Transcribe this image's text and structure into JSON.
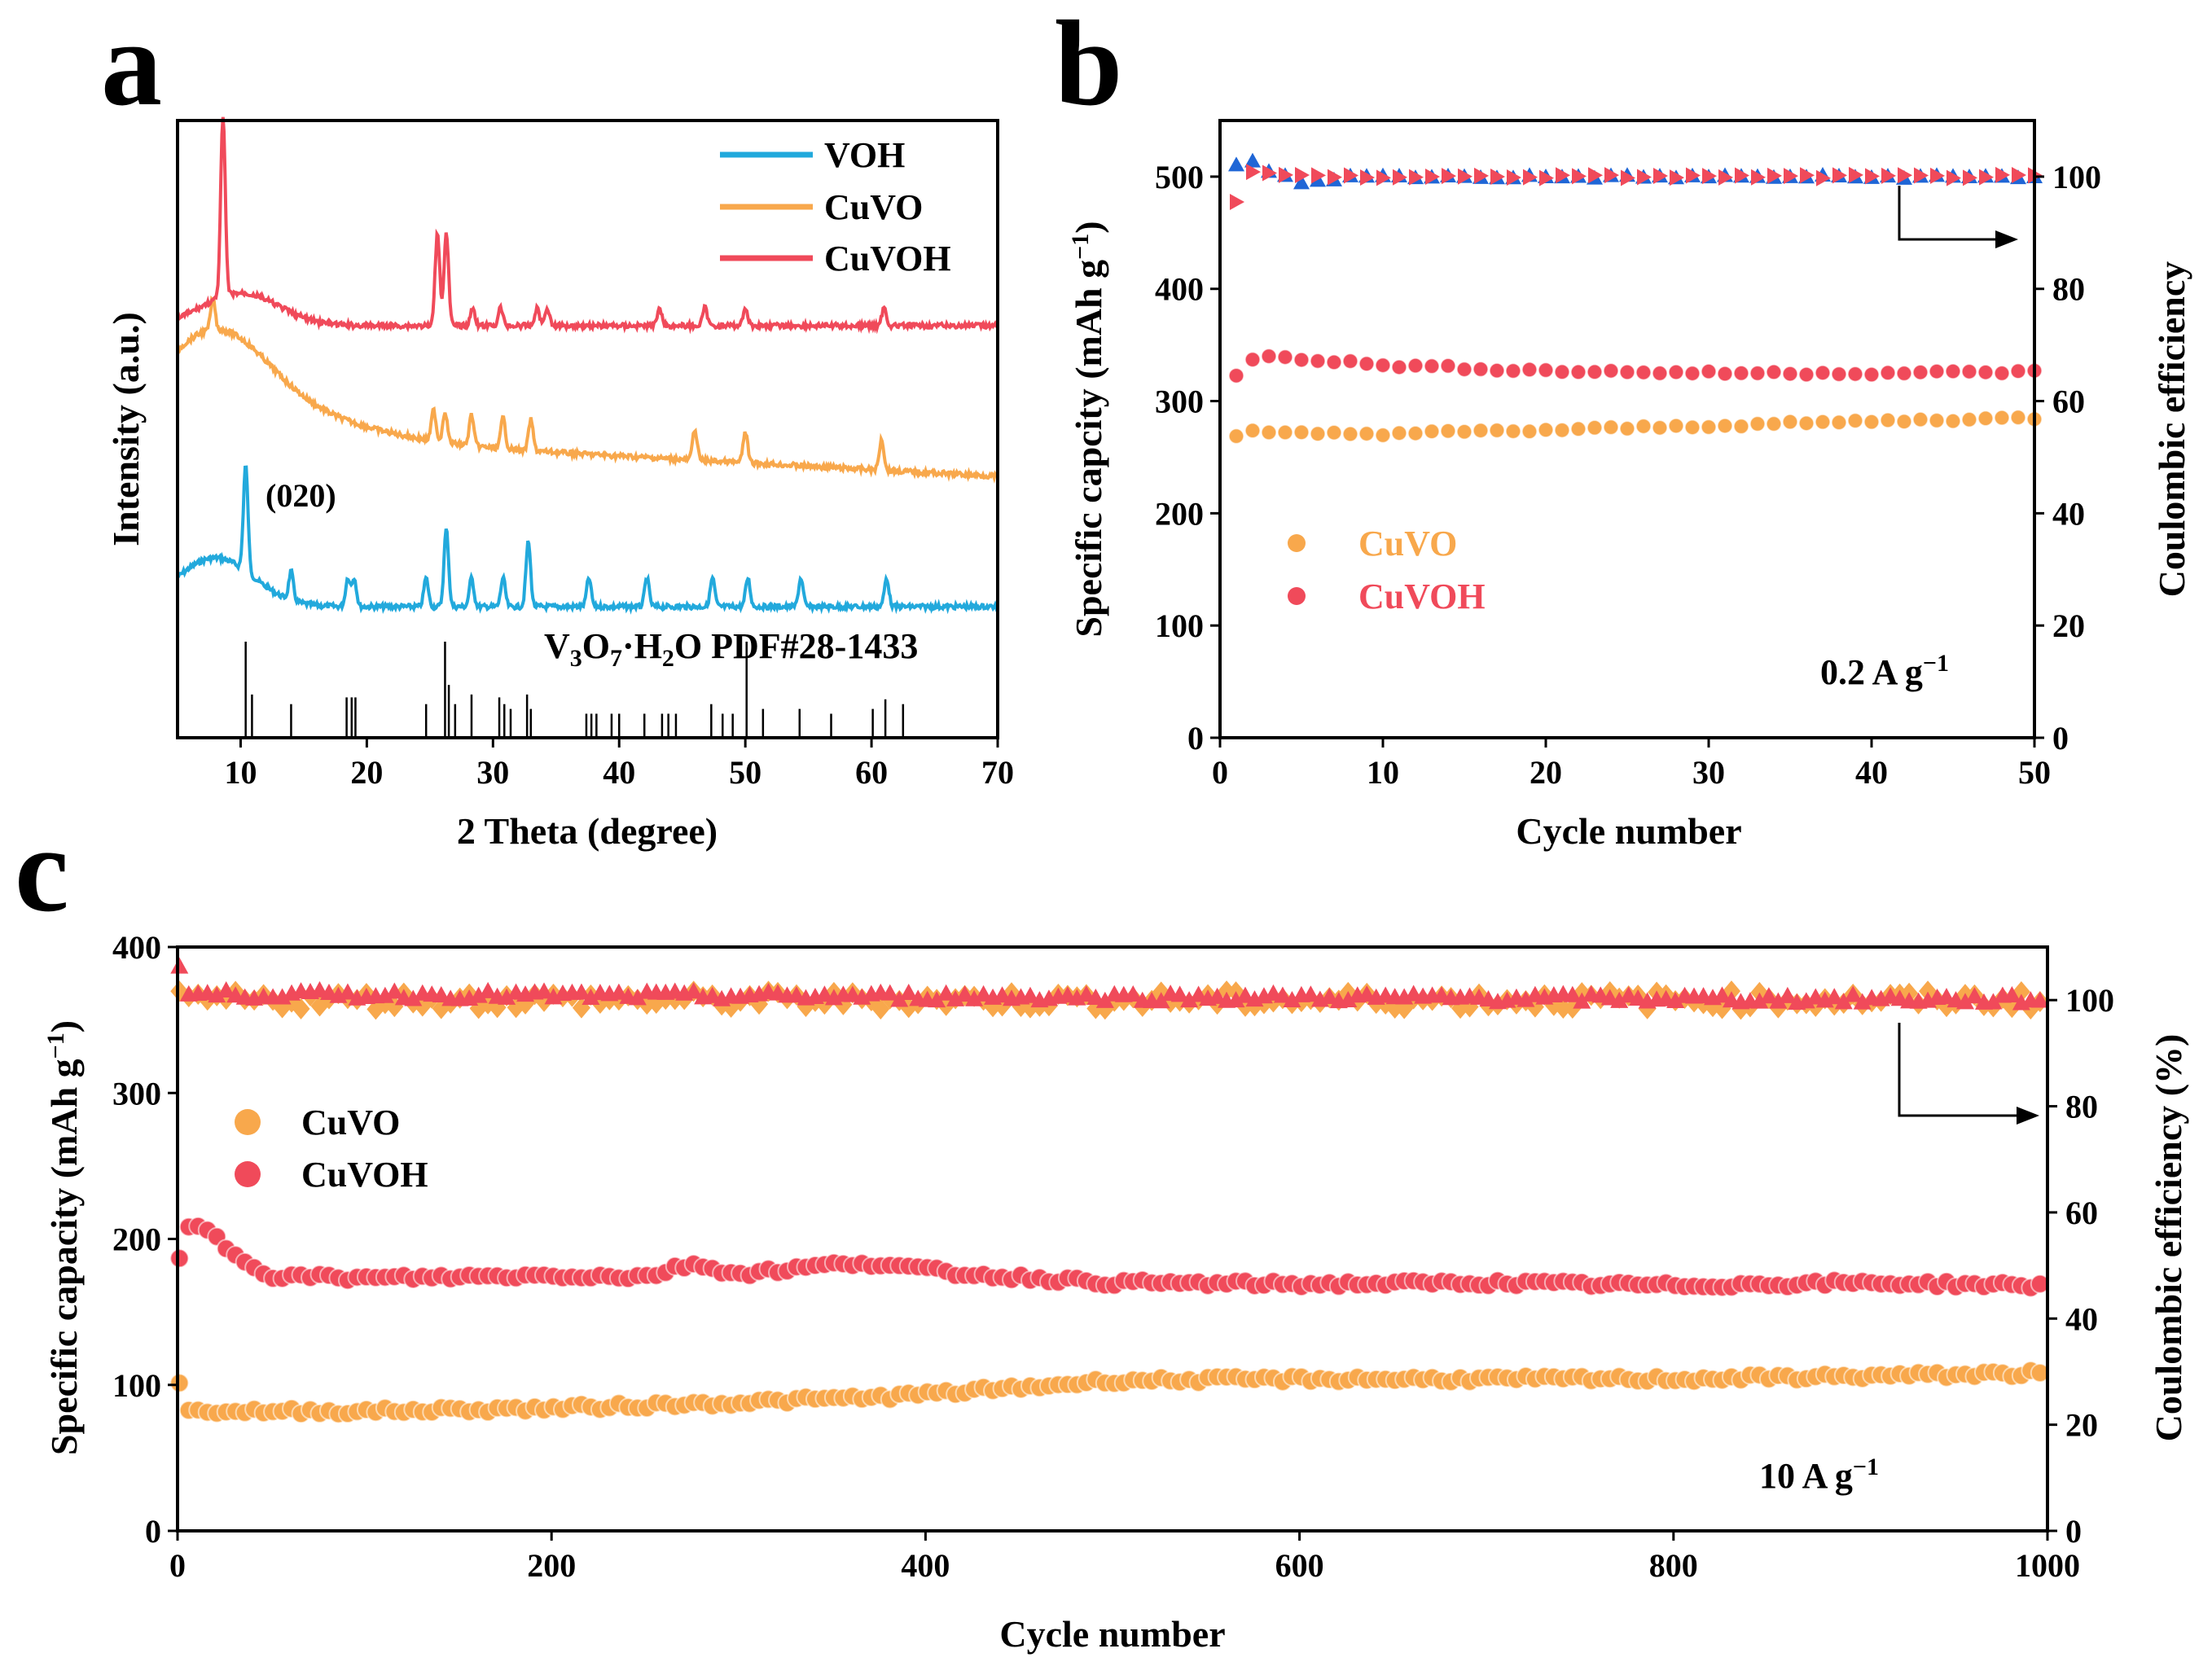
{
  "figure": {
    "panels": [
      {
        "label": "a"
      },
      {
        "label": "b"
      },
      {
        "label": "c"
      }
    ]
  },
  "colors": {
    "VOH": "#22a9dc",
    "CuVO": "#f8a84c",
    "CuVOH": "#f04a5a",
    "CE_blue": "#1f66d6",
    "axis": "#000000"
  },
  "chart_data": [
    {
      "panel": "a",
      "type": "line",
      "xlabel": "2 Theta (degree)",
      "ylabel": "Intensity (a.u.)",
      "xlim": [
        5,
        70
      ],
      "xticks": [
        "10",
        "20",
        "30",
        "40",
        "50",
        "60",
        "70"
      ],
      "legend_position": "top-right",
      "series": [
        {
          "name": "VOH",
          "peaks_2theta": [
            10.4,
            14.0,
            18.5,
            19.0,
            24.7,
            26.3,
            28.3,
            30.8,
            32.8,
            37.6,
            42.2,
            47.4,
            50.2,
            54.4,
            61.2
          ]
        },
        {
          "name": "CuVO",
          "peaks_2theta": [
            7.8,
            25.3,
            26.2,
            28.3,
            30.8,
            33.0,
            46.0,
            50.0,
            60.8
          ]
        },
        {
          "name": "CuVOH",
          "peaks_2theta": [
            8.6,
            25.6,
            26.3,
            28.4,
            30.6,
            33.5,
            34.3,
            43.2,
            46.8,
            50.0,
            61.0
          ]
        }
      ],
      "annotations": [
        "(020)"
      ],
      "reference": {
        "label_prefix": "V",
        "label_sub1": "3",
        "label_mid": "O",
        "label_sub2": "7",
        "label_tail": "·H",
        "label_sub3": "2",
        "label_end": "O PDF#28-1433",
        "lines": [
          {
            "x": 10.4,
            "h": 1.0
          },
          {
            "x": 10.9,
            "h": 0.45
          },
          {
            "x": 14.0,
            "h": 0.35
          },
          {
            "x": 18.4,
            "h": 0.42
          },
          {
            "x": 18.8,
            "h": 0.42
          },
          {
            "x": 19.1,
            "h": 0.42
          },
          {
            "x": 24.7,
            "h": 0.35
          },
          {
            "x": 26.2,
            "h": 1.0
          },
          {
            "x": 26.5,
            "h": 0.55
          },
          {
            "x": 27.0,
            "h": 0.35
          },
          {
            "x": 28.3,
            "h": 0.45
          },
          {
            "x": 30.5,
            "h": 0.42
          },
          {
            "x": 30.9,
            "h": 0.35
          },
          {
            "x": 31.4,
            "h": 0.3
          },
          {
            "x": 32.7,
            "h": 0.45
          },
          {
            "x": 33.0,
            "h": 0.3
          },
          {
            "x": 37.4,
            "h": 0.25
          },
          {
            "x": 37.8,
            "h": 0.25
          },
          {
            "x": 38.2,
            "h": 0.25
          },
          {
            "x": 39.4,
            "h": 0.25
          },
          {
            "x": 40.0,
            "h": 0.25
          },
          {
            "x": 42.0,
            "h": 0.25
          },
          {
            "x": 43.4,
            "h": 0.25
          },
          {
            "x": 43.9,
            "h": 0.25
          },
          {
            "x": 44.5,
            "h": 0.25
          },
          {
            "x": 47.3,
            "h": 0.35
          },
          {
            "x": 48.2,
            "h": 0.25
          },
          {
            "x": 49.0,
            "h": 0.25
          },
          {
            "x": 50.1,
            "h": 1.0
          },
          {
            "x": 51.4,
            "h": 0.3
          },
          {
            "x": 54.3,
            "h": 0.3
          },
          {
            "x": 56.8,
            "h": 0.25
          },
          {
            "x": 60.1,
            "h": 0.3
          },
          {
            "x": 61.1,
            "h": 0.4
          },
          {
            "x": 62.5,
            "h": 0.35
          }
        ]
      }
    },
    {
      "panel": "b",
      "type": "scatter",
      "xlabel": "Cycle number",
      "ylabel": "Specific capcity (mAh g",
      "ylabel_sup": "−1",
      "ylabel_close": ")",
      "y2label": "Coulombic efficiency",
      "xlim": [
        0,
        50
      ],
      "ylim": [
        0,
        550
      ],
      "y2lim": [
        0,
        110
      ],
      "xticks": [
        "0",
        "10",
        "20",
        "30",
        "40",
        "50"
      ],
      "yticks": [
        "0",
        "100",
        "200",
        "300",
        "400",
        "500"
      ],
      "y2ticks": [
        "0",
        "20",
        "40",
        "60",
        "80",
        "100"
      ],
      "annotation": "0.2 A g",
      "annotation_sup": "−1",
      "legend": [
        {
          "name": "CuVO"
        },
        {
          "name": "CuVOH"
        }
      ],
      "series": [
        {
          "name": "CuVO",
          "axis": "left",
          "x_range": [
            1,
            50
          ],
          "key_points": [
            [
              1,
              268
            ],
            [
              2,
              273
            ],
            [
              3,
              271
            ],
            [
              10,
              271
            ],
            [
              20,
              274
            ],
            [
              30,
              278
            ],
            [
              40,
              282
            ],
            [
              50,
              285
            ]
          ]
        },
        {
          "name": "CuVOH",
          "axis": "left",
          "x_range": [
            1,
            50
          ],
          "key_points": [
            [
              1,
              322
            ],
            [
              2,
              338
            ],
            [
              3,
              341
            ],
            [
              5,
              338
            ],
            [
              10,
              332
            ],
            [
              20,
              327
            ],
            [
              30,
              325
            ],
            [
              40,
              325
            ],
            [
              50,
              326
            ]
          ]
        },
        {
          "name": "CuVO CE",
          "axis": "right",
          "marker": "triangle-up",
          "key_points": [
            [
              1,
              102
            ],
            [
              2,
              103
            ],
            [
              3,
              101
            ],
            [
              5,
              99
            ],
            [
              8,
              100
            ],
            [
              50,
              100
            ]
          ]
        },
        {
          "name": "CuVOH CE",
          "axis": "right",
          "marker": "triangle-right",
          "key_points": [
            [
              1,
              95.5
            ],
            [
              2,
              101
            ],
            [
              3,
              100.5
            ],
            [
              5,
              100
            ],
            [
              50,
              100
            ]
          ]
        }
      ]
    },
    {
      "panel": "c",
      "type": "scatter",
      "xlabel": "Cycle number",
      "ylabel": "Specific capacity (mAh g",
      "ylabel_sup": "−1",
      "ylabel_close": ")",
      "y2label": "Coulombic efficiency (%)",
      "xlim": [
        0,
        1000
      ],
      "ylim": [
        0,
        400
      ],
      "y2lim": [
        0,
        110
      ],
      "xticks": [
        "0",
        "200",
        "400",
        "600",
        "800",
        "1000"
      ],
      "yticks": [
        "0",
        "100",
        "200",
        "300",
        "400"
      ],
      "y2ticks": [
        "0",
        "20",
        "40",
        "60",
        "80",
        "100"
      ],
      "annotation": "10 A g",
      "annotation_sup": "−1",
      "legend": [
        {
          "name": "CuVO"
        },
        {
          "name": "CuVOH"
        }
      ],
      "series": [
        {
          "name": "CuVO",
          "axis": "left",
          "key_points": [
            [
              1,
              102
            ],
            [
              5,
              82
            ],
            [
              100,
              82
            ],
            [
              200,
              84
            ],
            [
              300,
              88
            ],
            [
              380,
              92
            ],
            [
              450,
              98
            ],
            [
              500,
              103
            ],
            [
              600,
              104
            ],
            [
              800,
              104
            ],
            [
              1000,
              108
            ]
          ]
        },
        {
          "name": "CuVOH",
          "axis": "left",
          "key_points": [
            [
              1,
              185
            ],
            [
              5,
              208
            ],
            [
              15,
              207
            ],
            [
              30,
              190
            ],
            [
              50,
              175
            ],
            [
              100,
              173
            ],
            [
              200,
              175
            ],
            [
              250,
              174
            ],
            [
              275,
              183
            ],
            [
              300,
              176
            ],
            [
              365,
              184
            ],
            [
              420,
              176
            ],
            [
              500,
              170
            ],
            [
              600,
              169
            ],
            [
              700,
              170
            ],
            [
              800,
              168
            ],
            [
              900,
              170
            ],
            [
              1000,
              168
            ]
          ]
        },
        {
          "name": "CuVO CE",
          "axis": "right",
          "key_points": [
            [
              1,
              100
            ],
            [
              1000,
              100
            ]
          ]
        },
        {
          "name": "CuVOH CE",
          "axis": "right",
          "key_points": [
            [
              1,
              106
            ],
            [
              5,
              101
            ],
            [
              1000,
              100
            ]
          ]
        }
      ]
    }
  ]
}
